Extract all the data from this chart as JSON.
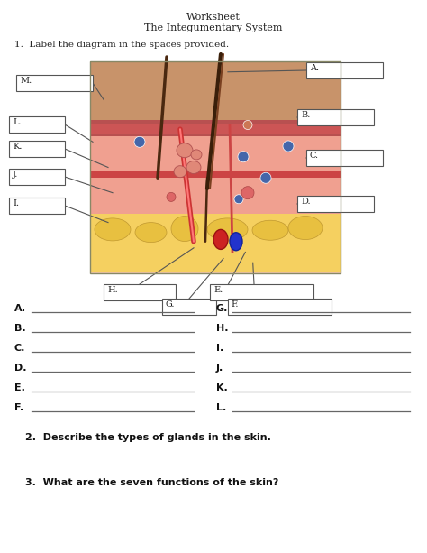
{
  "title1": "Worksheet",
  "title2": "The Integumentary System",
  "q1": "1.  Label the diagram in the spaces provided.",
  "q2": "2.  Describe the types of glands in the skin.",
  "q3": "3.  What are the seven functions of the skin?",
  "bg_color": "#ffffff",
  "answer_rows": [
    [
      "A.",
      "G."
    ],
    [
      "B.",
      "H."
    ],
    [
      "C.",
      "I."
    ],
    [
      "D.",
      "J."
    ],
    [
      "E.",
      "K."
    ],
    [
      "F.",
      "L."
    ]
  ],
  "fig_w": 4.74,
  "fig_h": 6.13,
  "dpi": 100
}
